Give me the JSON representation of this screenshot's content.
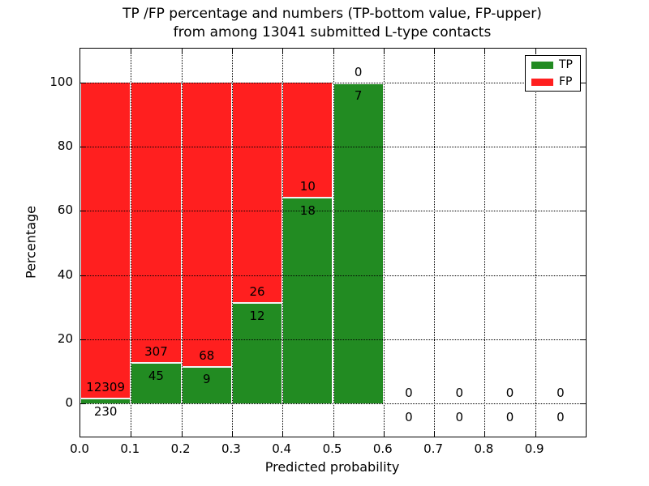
{
  "title": {
    "line1": "TP /FP percentage and numbers (TP-bottom value, FP-upper)",
    "line2": "from among 13041 submitted L-type contacts"
  },
  "axes": {
    "xlabel": "Predicted probability",
    "ylabel": "Percentage",
    "xtick_labels": [
      "0.0",
      "0.1",
      "0.2",
      "0.3",
      "0.4",
      "0.5",
      "0.6",
      "0.7",
      "0.8",
      "0.9"
    ],
    "ytick_labels": [
      "0",
      "20",
      "40",
      "60",
      "80",
      "100"
    ]
  },
  "legend": {
    "items": [
      {
        "label": "TP",
        "color": "#228b22"
      },
      {
        "label": "FP",
        "color": "#ff1f1f"
      }
    ]
  },
  "colors": {
    "tp": "#228b22",
    "fp": "#ff1f1f",
    "grid": "#000000",
    "bar_edge": "#ffffff"
  },
  "chart_data": {
    "type": "bar",
    "stacked": true,
    "title": "TP /FP percentage and numbers (TP-bottom value, FP-upper) from among 13041 submitted L-type contacts",
    "xlabel": "Predicted probability",
    "ylabel": "Percentage",
    "total_submitted": 13041,
    "bin_width": 0.1,
    "bin_starts": [
      0.0,
      0.1,
      0.2,
      0.3,
      0.4,
      0.5,
      0.6,
      0.7,
      0.8,
      0.9
    ],
    "series": [
      {
        "name": "TP",
        "color": "#228b22",
        "counts": [
          230,
          45,
          9,
          12,
          18,
          7,
          0,
          0,
          0,
          0
        ],
        "pct": [
          1.83,
          12.78,
          11.69,
          31.58,
          64.29,
          100,
          0,
          0,
          0,
          0
        ]
      },
      {
        "name": "FP",
        "color": "#ff1f1f",
        "counts": [
          12309,
          307,
          68,
          26,
          10,
          0,
          0,
          0,
          0,
          0
        ],
        "pct": [
          98.17,
          87.22,
          88.31,
          68.42,
          35.71,
          0,
          0,
          0,
          0,
          0
        ]
      }
    ],
    "annotation_rule": "FP count printed above TP/FP boundary, TP count printed below boundary",
    "xlim": [
      0.0,
      1.0
    ],
    "ylim": [
      0,
      100
    ],
    "xticks": [
      0.0,
      0.1,
      0.2,
      0.3,
      0.4,
      0.5,
      0.6,
      0.7,
      0.8,
      0.9
    ],
    "yticks": [
      0,
      20,
      40,
      60,
      80,
      100
    ],
    "grid": true,
    "grid_style": "dotted",
    "legend_position": "upper right"
  }
}
